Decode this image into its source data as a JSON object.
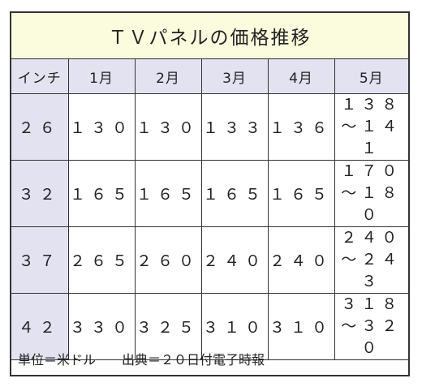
{
  "title": "ＴＶパネルの価格推移",
  "headers": [
    "インチ",
    "1月",
    "2月",
    "3月",
    "4月",
    "5月"
  ],
  "rows": [
    {
      "size": "２６",
      "m1": "１３０",
      "m2": "１３０",
      "m3": "１３３",
      "m4": "１３６",
      "m5_top": "１３８",
      "m5_bottom": "～１４１"
    },
    {
      "size": "３２",
      "m1": "１６５",
      "m2": "１６５",
      "m3": "１６５",
      "m4": "１６５",
      "m5_top": "１７０",
      "m5_bottom": "～１８０"
    },
    {
      "size": "３７",
      "m1": "２６５",
      "m2": "２６０",
      "m3": "２４０",
      "m4": "２４０",
      "m5_top": "２４０",
      "m5_bottom": "～２４３"
    },
    {
      "size": "４２",
      "m1": "３３０",
      "m2": "３２５",
      "m3": "３１０",
      "m4": "３１０",
      "m5_top": "３１８",
      "m5_bottom": "～３２０"
    }
  ],
  "footer": "単位＝米ドル　　出典＝２０日付電子時報",
  "colors": {
    "title_bg": "#fbfbde",
    "header_bg": "#e2e2f0",
    "border": "#333333"
  }
}
